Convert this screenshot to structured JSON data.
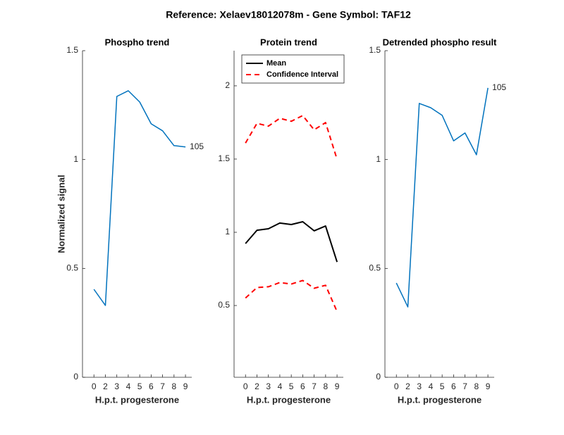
{
  "title": "Reference:  Xelaev18012078m - Gene Symbol:  TAF12",
  "chart_data": [
    {
      "type": "line",
      "title": "Phospho trend",
      "xlabel": "H.p.t. progesterone",
      "ylabel": "Normalized signal",
      "x": [
        1,
        2,
        3,
        4,
        5,
        6,
        7,
        8,
        9
      ],
      "series": [
        {
          "color": "#0072bd",
          "values": [
            0.404,
            0.33,
            1.29,
            1.316,
            1.264,
            1.164,
            1.132,
            1.064,
            1.058
          ]
        }
      ],
      "annotation": "105",
      "xlim": [
        0,
        9.55
      ],
      "xticks": [
        {
          "value": 1,
          "label": "0"
        },
        {
          "value": 2,
          "label": "2"
        },
        {
          "value": 3,
          "label": "3"
        },
        {
          "value": 4,
          "label": "4"
        },
        {
          "value": 5,
          "label": "5"
        },
        {
          "value": 6,
          "label": "6"
        },
        {
          "value": 7,
          "label": "7"
        },
        {
          "value": 8,
          "label": "8"
        },
        {
          "value": 9,
          "label": "9"
        }
      ],
      "ylim": [
        0,
        1.5
      ],
      "yticks": [
        0,
        0.5,
        1,
        1.5
      ]
    },
    {
      "type": "line",
      "title": "Protein trend",
      "xlabel": "H.p.t. progesterone",
      "x": [
        1,
        2,
        3,
        4,
        5,
        6,
        7,
        8,
        9
      ],
      "series": [
        {
          "name": "Mean",
          "color": "#000000",
          "dash": "solid",
          "values": [
            0.923,
            1.014,
            1.024,
            1.063,
            1.053,
            1.072,
            1.01,
            1.043,
            0.797
          ]
        },
        {
          "name": "Confidence Interval",
          "color": "#ff0000",
          "dash": "dashed",
          "values": [
            1.609,
            1.744,
            1.725,
            1.778,
            1.758,
            1.797,
            1.7,
            1.749,
            1.498
          ]
        },
        {
          "color": "#ff0000",
          "dash": "dashed",
          "values": [
            0.551,
            0.623,
            0.628,
            0.657,
            0.647,
            0.671,
            0.618,
            0.638,
            0.459
          ]
        }
      ],
      "legend": "upper left",
      "xlim": [
        0,
        9.55
      ],
      "xticks": [
        {
          "value": 1,
          "label": "0"
        },
        {
          "value": 2,
          "label": "2"
        },
        {
          "value": 3,
          "label": "3"
        },
        {
          "value": 4,
          "label": "4"
        },
        {
          "value": 5,
          "label": "5"
        },
        {
          "value": 6,
          "label": "6"
        },
        {
          "value": 7,
          "label": "7"
        },
        {
          "value": 8,
          "label": "8"
        },
        {
          "value": 9,
          "label": "9"
        }
      ],
      "ylim": [
        0.01,
        2.24
      ],
      "yticks": [
        0.5,
        1,
        1.5,
        2
      ]
    },
    {
      "type": "line",
      "title": "Detrended phospho result",
      "xlabel": "H.p.t. progesterone",
      "x": [
        1,
        2,
        3,
        4,
        5,
        6,
        7,
        8,
        9
      ],
      "series": [
        {
          "color": "#0072bd",
          "values": [
            0.433,
            0.323,
            1.258,
            1.238,
            1.203,
            1.086,
            1.122,
            1.022,
            1.329
          ]
        }
      ],
      "annotation": "105",
      "xlim": [
        0,
        9.55
      ],
      "xticks": [
        {
          "value": 1,
          "label": "0"
        },
        {
          "value": 2,
          "label": "2"
        },
        {
          "value": 3,
          "label": "3"
        },
        {
          "value": 4,
          "label": "4"
        },
        {
          "value": 5,
          "label": "5"
        },
        {
          "value": 6,
          "label": "6"
        },
        {
          "value": 7,
          "label": "7"
        },
        {
          "value": 8,
          "label": "8"
        },
        {
          "value": 9,
          "label": "9"
        }
      ],
      "ylim": [
        0,
        1.5
      ],
      "yticks": [
        0,
        0.5,
        1,
        1.5
      ]
    }
  ]
}
